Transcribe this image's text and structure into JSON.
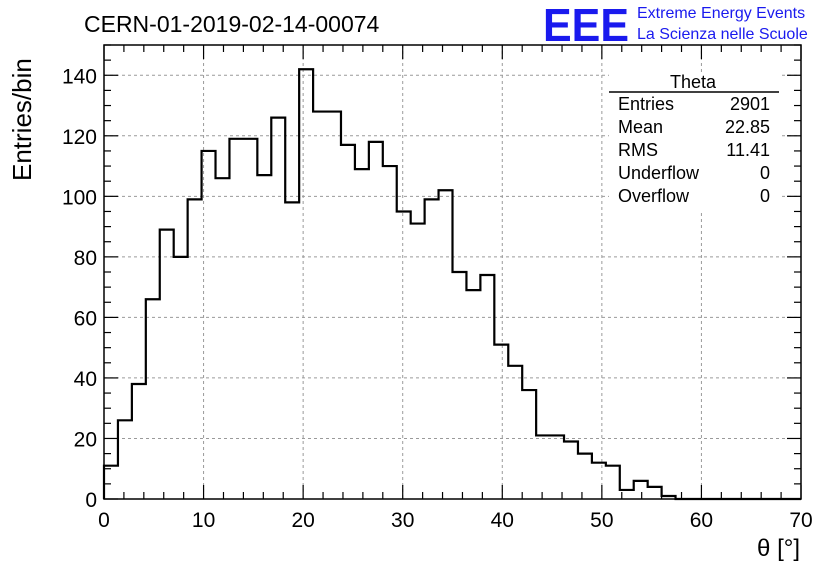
{
  "chart_data": {
    "type": "histogram",
    "title": "CERN-01-2019-02-14-00074",
    "xlabel": "θ [°]",
    "ylabel": "Entries/bin",
    "xlim": [
      0,
      70
    ],
    "ylim": [
      0,
      150
    ],
    "x_ticks": [
      0,
      10,
      20,
      30,
      40,
      50,
      60,
      70
    ],
    "y_ticks": [
      0,
      20,
      40,
      60,
      80,
      100,
      120,
      140
    ],
    "grid": true,
    "bin_width": 1.4,
    "bin_start": 0,
    "values": [
      11,
      26,
      38,
      66,
      89,
      80,
      99,
      115,
      106,
      119,
      119,
      107,
      126,
      98,
      142,
      128,
      128,
      117,
      109,
      118,
      110,
      95,
      91,
      99,
      102,
      75,
      69,
      74,
      51,
      44,
      36,
      21,
      21,
      19,
      15,
      12,
      11,
      3,
      6,
      4,
      1,
      0,
      0,
      0,
      0,
      0,
      0,
      0,
      0,
      0
    ]
  },
  "stats_box": {
    "title": "Theta",
    "rows": [
      {
        "label": "Entries",
        "value": "2901"
      },
      {
        "label": "Mean",
        "value": "22.85"
      },
      {
        "label": "RMS",
        "value": "11.41"
      },
      {
        "label": "Underflow",
        "value": "0"
      },
      {
        "label": "Overflow",
        "value": "0"
      }
    ]
  },
  "logo": {
    "mark": "EEE",
    "line1": "Extreme Energy Events",
    "line2": "La Scienza nelle Scuole",
    "color": "#1a1aee"
  }
}
